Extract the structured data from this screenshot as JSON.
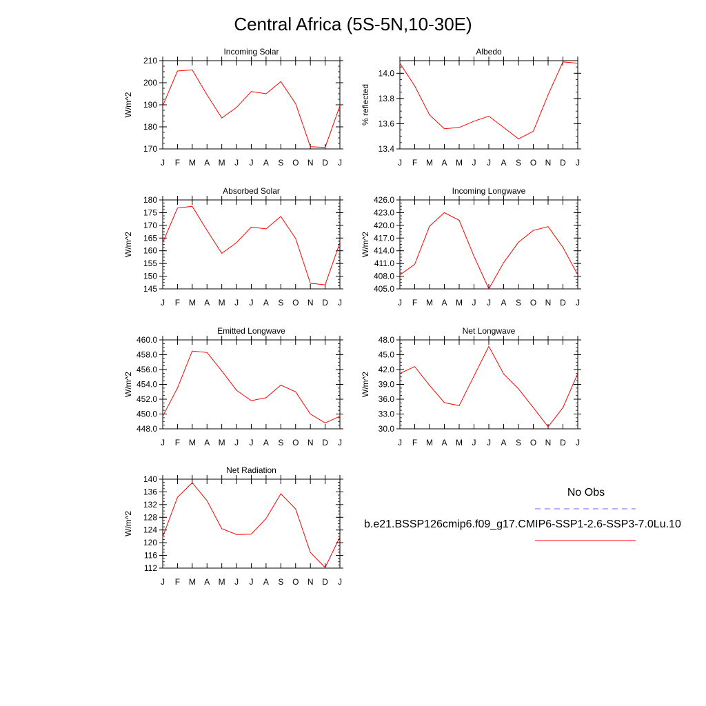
{
  "title": "Central Africa (5S-5N,10-30E)",
  "legend": {
    "obs_label": "No Obs",
    "obs_color": "#6666ff",
    "case_label": "b.e21.BSSP126cmip6.f09_g17.CMIP6-SSP1-2.6-SSP3-7.0Lu.10",
    "case_color": "#ff0000"
  },
  "chart_data": [
    {
      "type": "line",
      "title": "Incoming Solar",
      "ylabel": "W/m^2",
      "x": [
        "J",
        "F",
        "M",
        "A",
        "M",
        "J",
        "J",
        "A",
        "S",
        "O",
        "N",
        "D",
        "J"
      ],
      "ylim": [
        170,
        210
      ],
      "yticks": [
        "170",
        "180",
        "190",
        "200",
        "210"
      ],
      "series": [
        {
          "values": [
            189.5,
            205.3,
            205.8,
            194.5,
            184.0,
            188.8,
            196.0,
            195.0,
            200.5,
            190.5,
            171.0,
            170.7,
            189.5
          ],
          "color": "#ff0000"
        }
      ]
    },
    {
      "type": "line",
      "title": "Albedo",
      "ylabel": "% reflected",
      "x": [
        "J",
        "F",
        "M",
        "A",
        "M",
        "J",
        "J",
        "A",
        "S",
        "O",
        "N",
        "D",
        "J"
      ],
      "ylim": [
        13.4,
        14.1
      ],
      "yticks": [
        "13.4",
        "13.6",
        "13.8",
        "14.0"
      ],
      "series": [
        {
          "values": [
            14.08,
            13.9,
            13.67,
            13.56,
            13.57,
            13.62,
            13.66,
            13.57,
            13.48,
            13.54,
            13.83,
            14.09,
            14.08
          ],
          "color": "#ff0000"
        }
      ]
    },
    {
      "type": "line",
      "title": "Absorbed Solar",
      "ylabel": "W/m^2",
      "x": [
        "J",
        "F",
        "M",
        "A",
        "M",
        "J",
        "J",
        "A",
        "S",
        "O",
        "N",
        "D",
        "J"
      ],
      "ylim": [
        145,
        180
      ],
      "yticks": [
        "145",
        "150",
        "155",
        "160",
        "165",
        "170",
        "175",
        "180"
      ],
      "series": [
        {
          "values": [
            163.2,
            176.8,
            177.5,
            168.0,
            159.0,
            163.2,
            169.3,
            168.6,
            173.5,
            164.8,
            147.2,
            146.6,
            163.2
          ],
          "color": "#ff0000"
        }
      ]
    },
    {
      "type": "line",
      "title": "Incoming Longwave",
      "ylabel": "W/m^2",
      "x": [
        "J",
        "F",
        "M",
        "A",
        "M",
        "J",
        "J",
        "A",
        "S",
        "O",
        "N",
        "D",
        "J"
      ],
      "ylim": [
        405,
        426
      ],
      "yticks": [
        "405.0",
        "408.0",
        "411.0",
        "414.0",
        "417.0",
        "420.0",
        "423.0",
        "426.0"
      ],
      "series": [
        {
          "values": [
            408.3,
            410.8,
            419.8,
            423.0,
            421.2,
            412.7,
            405.0,
            411.2,
            416.0,
            418.8,
            419.7,
            414.8,
            408.3
          ],
          "color": "#ff0000"
        }
      ]
    },
    {
      "type": "line",
      "title": "Emitted Longwave",
      "ylabel": "W/m^2",
      "x": [
        "J",
        "F",
        "M",
        "A",
        "M",
        "J",
        "J",
        "A",
        "S",
        "O",
        "N",
        "D",
        "J"
      ],
      "ylim": [
        448,
        460
      ],
      "yticks": [
        "448.0",
        "450.0",
        "452.0",
        "454.0",
        "456.0",
        "458.0",
        "460.0"
      ],
      "series": [
        {
          "values": [
            449.7,
            453.5,
            458.5,
            458.3,
            455.8,
            453.2,
            451.8,
            452.2,
            453.9,
            453.0,
            450.0,
            448.8,
            449.7
          ],
          "color": "#ff0000"
        }
      ]
    },
    {
      "type": "line",
      "title": "Net Longwave",
      "ylabel": "W/m^2",
      "x": [
        "J",
        "F",
        "M",
        "A",
        "M",
        "J",
        "J",
        "A",
        "S",
        "O",
        "N",
        "D",
        "J"
      ],
      "ylim": [
        30,
        48
      ],
      "yticks": [
        "30.0",
        "33.0",
        "36.0",
        "39.0",
        "42.0",
        "45.0",
        "48.0"
      ],
      "series": [
        {
          "values": [
            41.2,
            42.6,
            38.8,
            35.3,
            34.7,
            40.7,
            46.7,
            41.1,
            38.1,
            34.3,
            30.4,
            34.3,
            41.2
          ],
          "color": "#ff0000"
        }
      ]
    },
    {
      "type": "line",
      "title": "Net Radiation",
      "ylabel": "W/m^2",
      "x": [
        "J",
        "F",
        "M",
        "A",
        "M",
        "J",
        "J",
        "A",
        "S",
        "O",
        "N",
        "D",
        "J"
      ],
      "ylim": [
        112,
        140
      ],
      "yticks": [
        "112",
        "116",
        "120",
        "124",
        "128",
        "132",
        "136",
        "140"
      ],
      "series": [
        {
          "values": [
            121.8,
            134.3,
            138.9,
            133.2,
            124.4,
            122.6,
            122.7,
            127.6,
            135.4,
            130.6,
            116.9,
            112.2,
            121.8
          ],
          "color": "#ff0000"
        }
      ]
    }
  ]
}
